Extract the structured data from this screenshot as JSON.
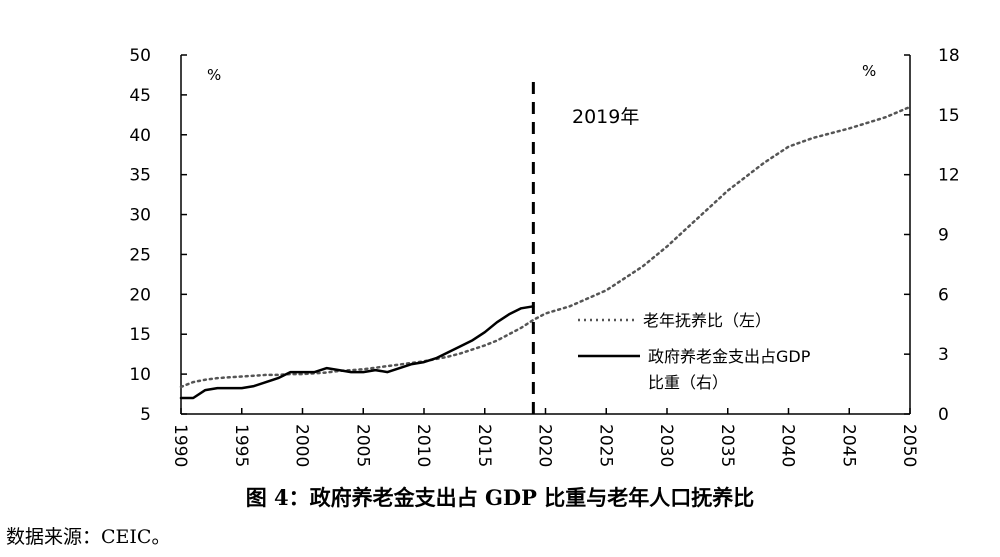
{
  "chart_data": {
    "type": "line",
    "x_ticks": [
      "1990",
      "1995",
      "2000",
      "2005",
      "2010",
      "2015",
      "2020",
      "2025",
      "2030",
      "2035",
      "2040",
      "2045",
      "2050"
    ],
    "xlim": [
      1990,
      2050
    ],
    "y_left": {
      "unit": "%",
      "ylim": [
        5,
        50
      ],
      "ticks": [
        "5",
        "10",
        "15",
        "20",
        "25",
        "30",
        "35",
        "40",
        "45",
        "50"
      ]
    },
    "y_right": {
      "unit": "%",
      "ylim": [
        0,
        18
      ],
      "ticks": [
        "0",
        "3",
        "6",
        "9",
        "12",
        "15",
        "18"
      ]
    },
    "annotation": {
      "x": 2019,
      "label": "2019年",
      "style": "dashed vertical line"
    },
    "grid": false,
    "legend_position": "center-right",
    "series": [
      {
        "name": "老年抚养比（左）",
        "axis": "left",
        "style": "dotted",
        "x": [
          1990,
          1991,
          1992,
          1993,
          1994,
          1995,
          1996,
          1997,
          1998,
          1999,
          2000,
          2001,
          2002,
          2003,
          2004,
          2005,
          2006,
          2007,
          2008,
          2009,
          2010,
          2011,
          2012,
          2013,
          2014,
          2015,
          2016,
          2017,
          2018,
          2019,
          2020,
          2022,
          2025,
          2028,
          2030,
          2032,
          2035,
          2038,
          2040,
          2042,
          2045,
          2048,
          2050
        ],
        "values": [
          8.4,
          9.0,
          9.3,
          9.5,
          9.6,
          9.7,
          9.8,
          9.9,
          9.9,
          10.0,
          10.0,
          10.1,
          10.2,
          10.4,
          10.5,
          10.6,
          10.8,
          11.0,
          11.2,
          11.4,
          11.6,
          11.9,
          12.2,
          12.6,
          13.1,
          13.6,
          14.2,
          15.0,
          15.8,
          16.8,
          17.6,
          18.5,
          20.5,
          23.5,
          26.0,
          28.8,
          33.0,
          36.5,
          38.5,
          39.6,
          40.8,
          42.2,
          43.5
        ]
      },
      {
        "name": "政府养老金支出占GDP比重（右）",
        "axis": "right",
        "style": "solid",
        "x": [
          1990,
          1991,
          1992,
          1993,
          1994,
          1995,
          1996,
          1997,
          1998,
          1999,
          2000,
          2001,
          2002,
          2003,
          2004,
          2005,
          2006,
          2007,
          2008,
          2009,
          2010,
          2011,
          2012,
          2013,
          2014,
          2015,
          2016,
          2017,
          2018,
          2019
        ],
        "values": [
          0.8,
          0.8,
          1.2,
          1.3,
          1.3,
          1.3,
          1.4,
          1.6,
          1.8,
          2.1,
          2.1,
          2.1,
          2.3,
          2.2,
          2.1,
          2.1,
          2.2,
          2.1,
          2.3,
          2.5,
          2.6,
          2.8,
          3.1,
          3.4,
          3.7,
          4.1,
          4.6,
          5.0,
          5.3,
          5.4
        ]
      }
    ]
  },
  "annotation_label": "2019年",
  "legend": {
    "dotted_label": "老年抚养比（左）",
    "solid_label_line1": "政府养老金支出占GDP",
    "solid_label_line2": "比重（右）"
  },
  "caption": "图 4：政府养老金支出占 GDP 比重与老年人口抚养比",
  "source": "数据来源：CEIC。"
}
